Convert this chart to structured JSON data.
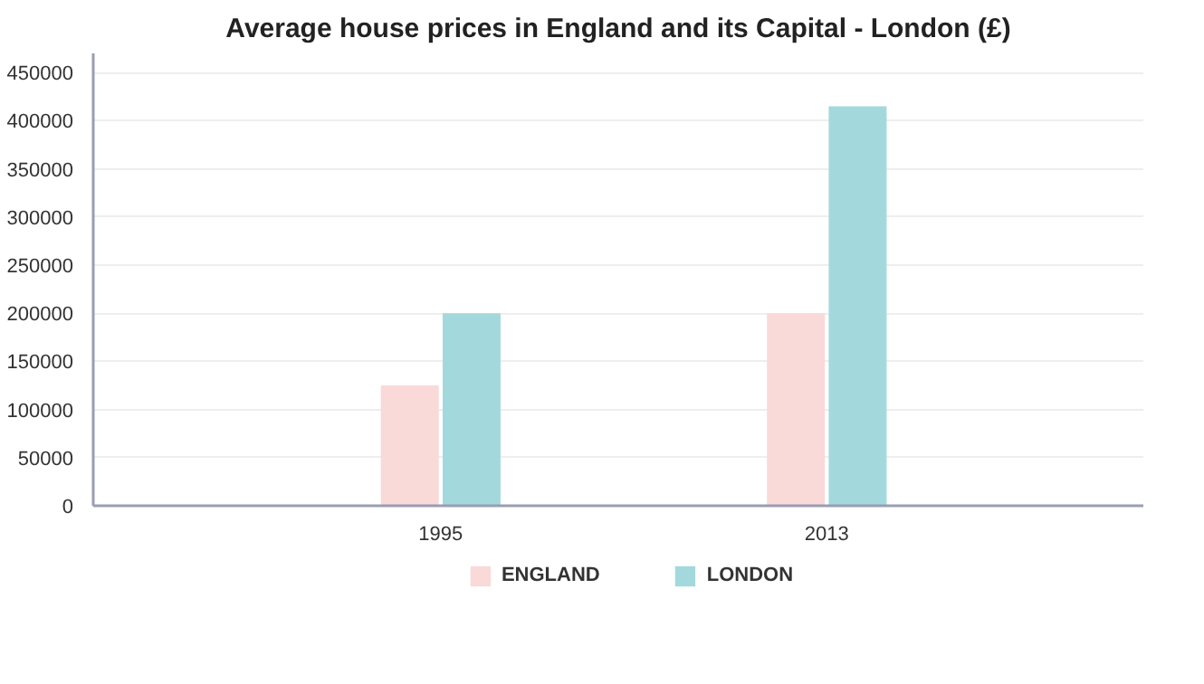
{
  "chart_data": {
    "type": "bar",
    "title": "Average house prices in England and its Capital - London (£)",
    "categories": [
      "1995",
      "2013"
    ],
    "series": [
      {
        "name": "ENGLAND",
        "color": "#fad9d9",
        "values": [
          125000,
          200000
        ]
      },
      {
        "name": "LONDON",
        "color": "#a3d9dc",
        "values": [
          200000,
          415000
        ]
      }
    ],
    "ylim": [
      0,
      470000
    ],
    "yticks": [
      0,
      50000,
      100000,
      150000,
      200000,
      250000,
      300000,
      350000,
      400000,
      450000
    ],
    "grid": "y",
    "legend": "bottom"
  }
}
